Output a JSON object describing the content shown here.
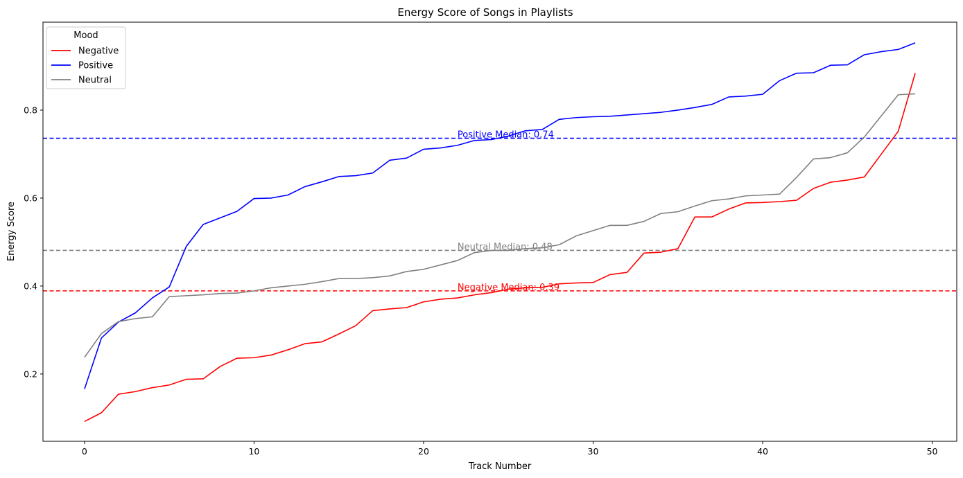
{
  "chart_data": {
    "type": "line",
    "title": "Energy Score of Songs in Playlists",
    "xlabel": "Track Number",
    "ylabel": "Energy Score",
    "xlim": [
      -2.45,
      51.45
    ],
    "ylim": [
      0.047,
      1.0
    ],
    "xticks": [
      0,
      10,
      20,
      30,
      40,
      50
    ],
    "xtick_labels": [
      "0",
      "10",
      "20",
      "30",
      "40",
      "50"
    ],
    "yticks": [
      0.2,
      0.4,
      0.6,
      0.8
    ],
    "ytick_labels": [
      "0.2",
      "0.4",
      "0.6",
      "0.8"
    ],
    "grid": false,
    "legend": {
      "title": "Mood",
      "position": "top-left"
    },
    "colors": {
      "Negative": "#ff0000",
      "Positive": "#0000ff",
      "Neutral": "#808080"
    },
    "series": [
      {
        "name": "Negative",
        "color": "#ff0000",
        "values": [
          0.092,
          0.112,
          0.154,
          0.16,
          0.169,
          0.175,
          0.188,
          0.189,
          0.217,
          0.236,
          0.237,
          0.243,
          0.255,
          0.269,
          0.273,
          0.291,
          0.31,
          0.344,
          0.348,
          0.351,
          0.364,
          0.37,
          0.373,
          0.38,
          0.385,
          0.393,
          0.396,
          0.397,
          0.405,
          0.407,
          0.408,
          0.426,
          0.431,
          0.475,
          0.477,
          0.485,
          0.557,
          0.557,
          0.575,
          0.589,
          0.59,
          0.592,
          0.595,
          0.622,
          0.636,
          0.641,
          0.648,
          0.7,
          0.752,
          0.884
        ]
      },
      {
        "name": "Positive",
        "color": "#0000ff",
        "values": [
          0.166,
          0.282,
          0.318,
          0.339,
          0.373,
          0.398,
          0.49,
          0.54,
          0.555,
          0.57,
          0.599,
          0.6,
          0.607,
          0.626,
          0.637,
          0.649,
          0.651,
          0.657,
          0.686,
          0.691,
          0.711,
          0.714,
          0.72,
          0.731,
          0.733,
          0.741,
          0.753,
          0.756,
          0.779,
          0.783,
          0.785,
          0.786,
          0.789,
          0.792,
          0.795,
          0.8,
          0.806,
          0.813,
          0.83,
          0.832,
          0.836,
          0.867,
          0.884,
          0.885,
          0.902,
          0.903,
          0.926,
          0.933,
          0.938,
          0.953
        ]
      },
      {
        "name": "Neutral",
        "color": "#808080",
        "values": [
          0.238,
          0.292,
          0.319,
          0.326,
          0.33,
          0.376,
          0.378,
          0.38,
          0.383,
          0.384,
          0.389,
          0.396,
          0.4,
          0.404,
          0.41,
          0.417,
          0.417,
          0.419,
          0.423,
          0.433,
          0.438,
          0.448,
          0.458,
          0.476,
          0.481,
          0.481,
          0.485,
          0.487,
          0.494,
          0.514,
          0.526,
          0.538,
          0.538,
          0.547,
          0.565,
          0.569,
          0.582,
          0.594,
          0.598,
          0.605,
          0.607,
          0.609,
          0.647,
          0.689,
          0.692,
          0.703,
          0.739,
          0.787,
          0.835,
          0.837
        ]
      }
    ],
    "medians": [
      {
        "name": "Positive",
        "value": 0.736,
        "label": "Positive Median: 0.74",
        "color": "#0000ff",
        "label_x": 22
      },
      {
        "name": "Neutral",
        "value": 0.481,
        "label": "Neutral Median: 0.48",
        "color": "#808080",
        "label_x": 22
      },
      {
        "name": "Negative",
        "value": 0.389,
        "label": "Negative Median: 0.39",
        "color": "#ff0000",
        "label_x": 22
      }
    ]
  }
}
